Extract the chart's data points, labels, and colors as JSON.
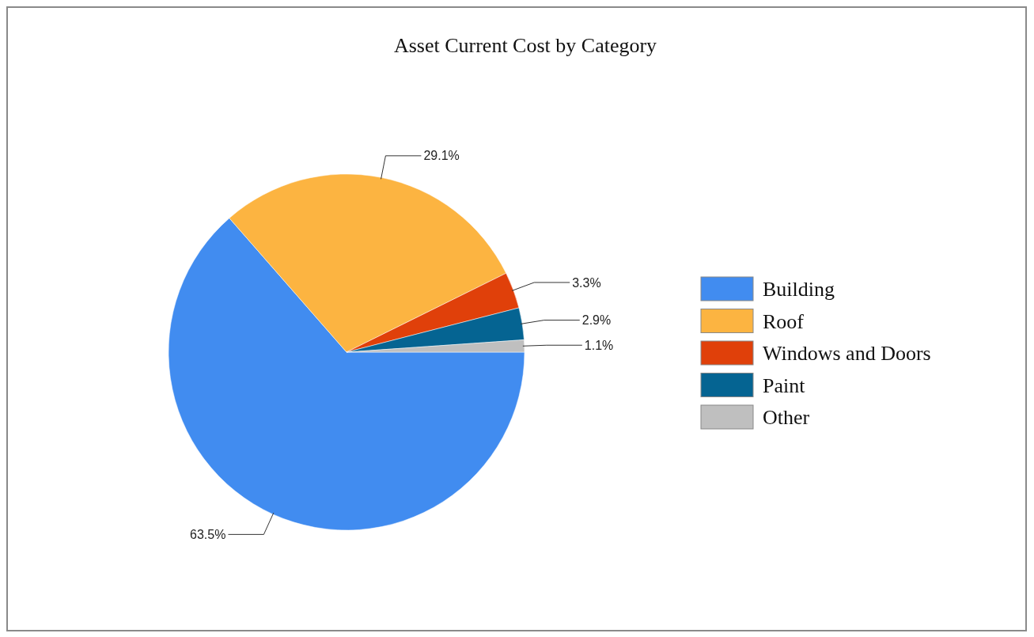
{
  "chart_data": {
    "type": "pie",
    "title": "Asset Current Cost by Category",
    "categories": [
      "Building",
      "Roof",
      "Windows and Doors",
      "Paint",
      "Other"
    ],
    "values": [
      63.5,
      29.1,
      3.3,
      2.9,
      1.1
    ],
    "colors": [
      "#418cf0",
      "#fcb441",
      "#e0400a",
      "#056492",
      "#bfbfbf"
    ],
    "value_labels": [
      "63.5%",
      "29.1%",
      "3.3%",
      "2.9%",
      "1.1%"
    ],
    "legend": "right"
  }
}
